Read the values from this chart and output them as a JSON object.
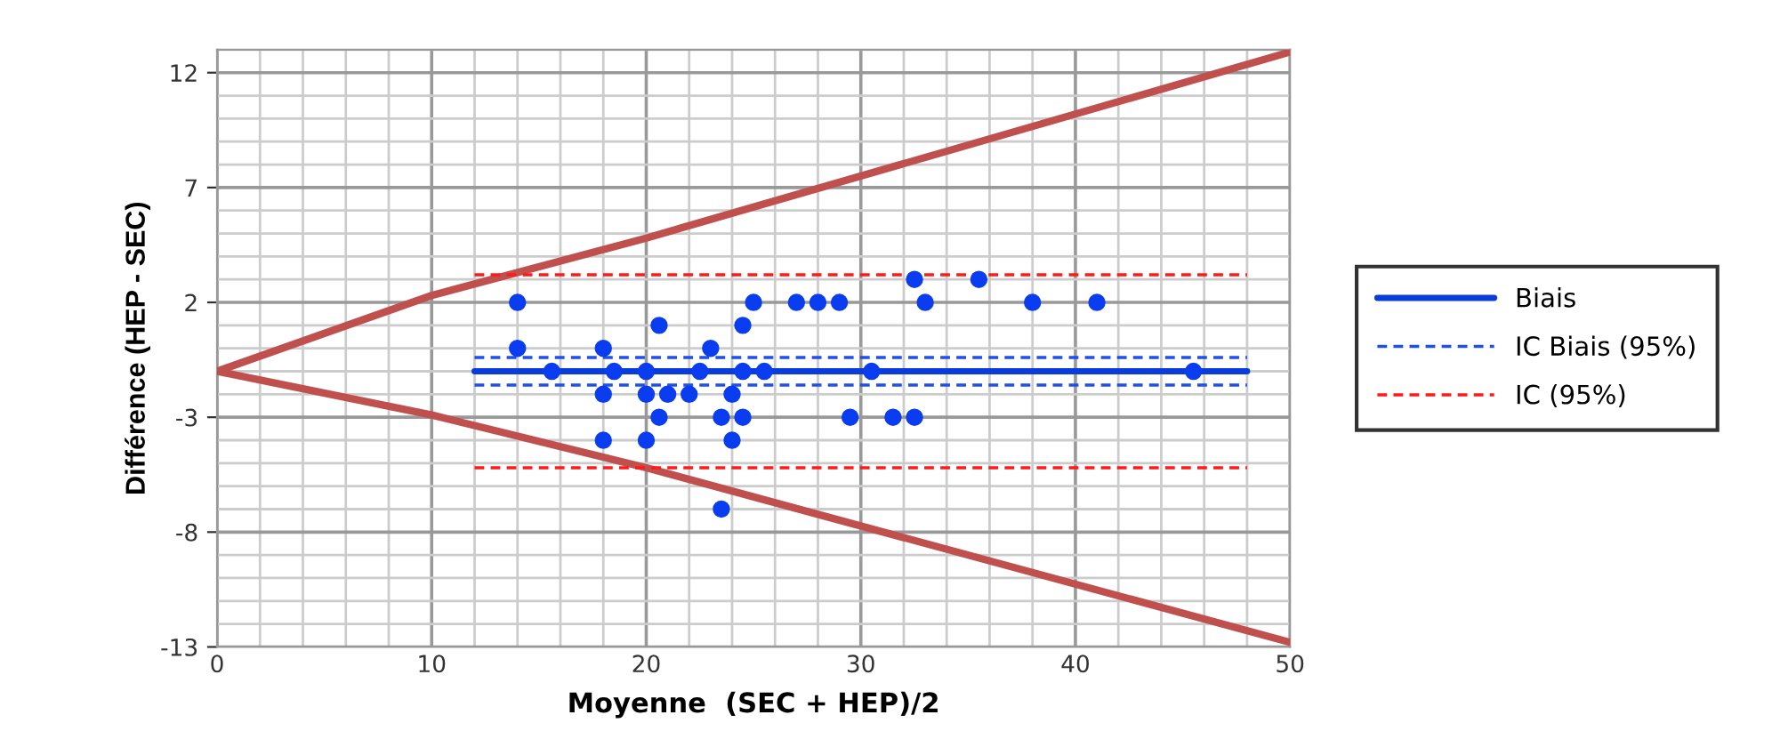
{
  "chart_data": {
    "type": "scatter",
    "xlabel": "Moyenne  (SEC + HEP)/2",
    "ylabel": "Différence (HEP - SEC)",
    "xlim": [
      0,
      50
    ],
    "ylim": [
      -13,
      13
    ],
    "xticks": [
      0,
      {
        "value": 2,
        "label": null
      },
      {
        "value": 4,
        "label": null
      },
      {
        "value": 6,
        "label": null
      },
      {
        "value": 8,
        "label": null
      },
      10,
      {
        "value": 12,
        "label": null
      },
      {
        "value": 14,
        "label": null
      },
      {
        "value": 16,
        "label": null
      },
      {
        "value": 18,
        "label": null
      },
      20,
      {
        "value": 22,
        "label": null
      },
      {
        "value": 24,
        "label": null
      },
      {
        "value": 26,
        "label": null
      },
      {
        "value": 28,
        "label": null
      },
      30,
      {
        "value": 32,
        "label": null
      },
      {
        "value": 34,
        "label": null
      },
      {
        "value": 36,
        "label": null
      },
      {
        "value": 38,
        "label": null
      },
      40,
      {
        "value": 42,
        "label": null
      },
      {
        "value": 44,
        "label": null
      },
      {
        "value": 46,
        "label": null
      },
      {
        "value": 48,
        "label": null
      },
      50
    ],
    "yticks": [
      -13,
      {
        "value": -12,
        "label": null
      },
      {
        "value": -11,
        "label": null
      },
      {
        "value": -10,
        "label": null
      },
      {
        "value": -9,
        "label": null
      },
      -8,
      {
        "value": -7,
        "label": null
      },
      {
        "value": -6,
        "label": null
      },
      {
        "value": -5,
        "label": null
      },
      {
        "value": -4,
        "label": null
      },
      -3,
      {
        "value": -2,
        "label": null
      },
      {
        "value": -1,
        "label": null
      },
      {
        "value": 0,
        "label": null
      },
      {
        "value": 1,
        "label": null
      },
      2,
      {
        "value": 3,
        "label": null
      },
      {
        "value": 4,
        "label": null
      },
      {
        "value": 5,
        "label": null
      },
      {
        "value": 6,
        "label": null
      },
      7,
      {
        "value": 8,
        "label": null
      },
      {
        "value": 9,
        "label": null
      },
      {
        "value": 10,
        "label": null
      },
      {
        "value": 11,
        "label": null
      },
      12,
      {
        "value": 13,
        "label": null
      }
    ],
    "grid": true,
    "legend": "right",
    "series": [
      {
        "type": "line",
        "color": "#c0504d",
        "line_style": "solid",
        "x": [
          0,
          10,
          20,
          50
        ],
        "values": [
          -1,
          2.3,
          4.8,
          12.9
        ]
      },
      {
        "type": "line",
        "color": "#c0504d",
        "line_style": "solid",
        "x": [
          0,
          10,
          20,
          50
        ],
        "values": [
          -1,
          -2.9,
          -5.2,
          -12.8
        ]
      },
      {
        "color": "#0a3cf0",
        "marker": "circle",
        "x": [
          14,
          14,
          15.6,
          18,
          18,
          18,
          18.5,
          20,
          20.6,
          20,
          20.6,
          20,
          21,
          22,
          22.5,
          23,
          23.5,
          23.5,
          24,
          24,
          24.5,
          24.5,
          24.5,
          25,
          25.5,
          27,
          28,
          29,
          29.5,
          30.5,
          31.5,
          32.5,
          32.5,
          33,
          35.5,
          38,
          41,
          45.5
        ],
        "values": [
          2,
          0,
          -1,
          0,
          -2,
          -4,
          -1,
          -1,
          1,
          -2,
          -3,
          -4,
          -2,
          -2,
          -1,
          0,
          -3,
          -7,
          -2,
          -4,
          1,
          -1,
          -3,
          2,
          -1,
          2,
          2,
          2,
          -3,
          -1,
          -3,
          -3,
          3,
          2,
          3,
          2,
          2,
          -1
        ]
      },
      {
        "type": "line",
        "name": "Biais",
        "color": "#0a3cdc",
        "line_style": "solid",
        "x": [
          12,
          48
        ],
        "values": [
          -1,
          -1
        ]
      },
      {
        "type": "line",
        "name": "IC Biais (95%)",
        "color": "#2050e8",
        "line_style": "dashed",
        "x": [
          12,
          48
        ],
        "values": [
          -0.4,
          -0.4
        ]
      },
      {
        "type": "line",
        "color": "#2050e8",
        "line_style": "dashed",
        "x": [
          12,
          48
        ],
        "values": [
          -1.6,
          -1.6
        ]
      },
      {
        "type": "line",
        "name": "IC (95%)",
        "color": "#ff1a1a",
        "line_style": "dashed",
        "x": [
          12,
          48
        ],
        "values": [
          3.2,
          3.2
        ]
      },
      {
        "type": "line",
        "color": "#ff1a1a",
        "line_style": "dashed",
        "x": [
          12,
          48
        ],
        "values": [
          -5.2,
          -5.2
        ]
      }
    ]
  }
}
